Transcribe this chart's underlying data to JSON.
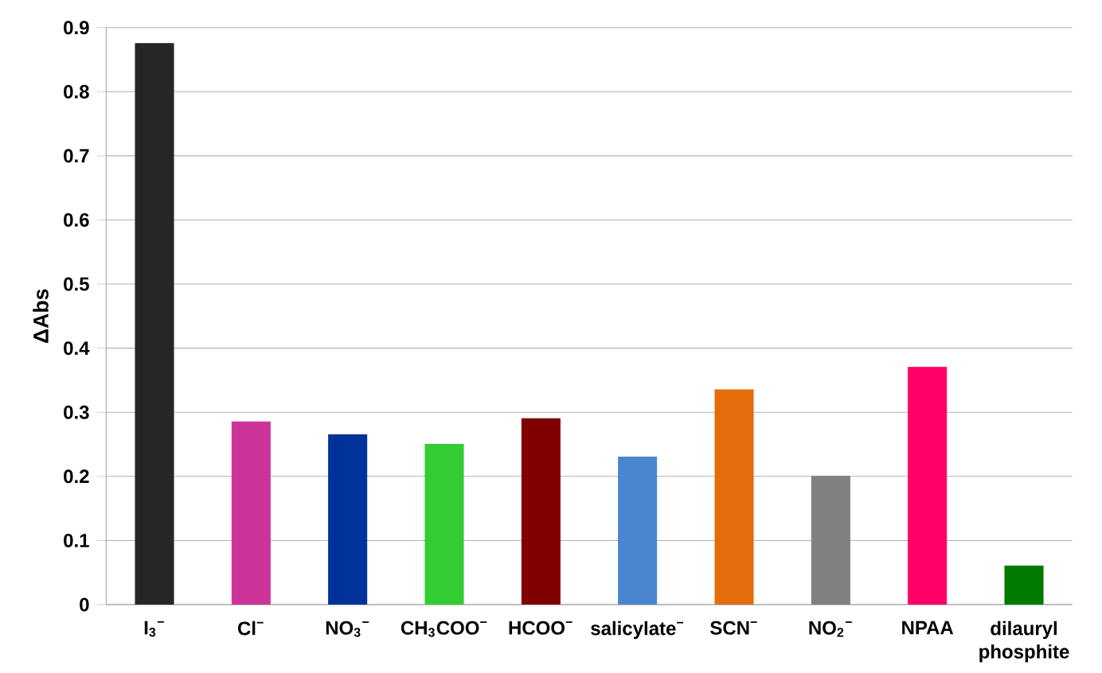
{
  "chart_data": {
    "type": "bar",
    "ylabel": "ΔAbs",
    "categories": [
      "I$_{3}$$^{−}$",
      "Cl$^{−}$",
      "NO$_{3}$$^{−}$",
      "CH$_{3}$COO$^{−}$",
      "HCOO$^{−}$",
      "salicylate$^{−}$",
      "SCN$^{−}$",
      "NO$_{2}$$^{−}$",
      "NPAA",
      "dilauryl phosphite"
    ],
    "values": [
      0.875,
      0.285,
      0.265,
      0.25,
      0.29,
      0.23,
      0.335,
      0.2,
      0.37,
      0.06
    ],
    "colors": [
      "#262626",
      "#cc3399",
      "#003399",
      "#33cc33",
      "#800000",
      "#4a86d0",
      "#e46c0a",
      "#808080",
      "#ff0066",
      "#007a00"
    ],
    "ylim": [
      0,
      0.9
    ],
    "yticks": [
      0,
      0.1,
      0.2,
      0.3,
      0.4,
      0.5,
      0.6,
      0.7,
      0.8,
      0.9
    ],
    "grid": "y"
  }
}
